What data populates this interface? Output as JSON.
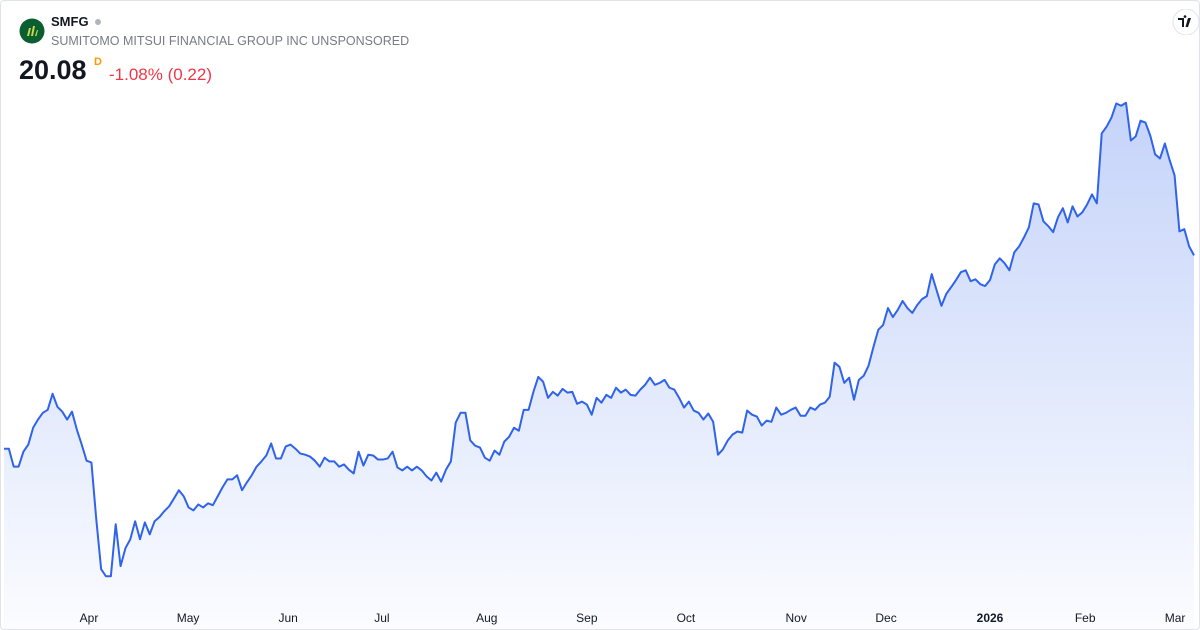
{
  "ticker": "SMFG",
  "name": "SUMITOMO MITSUI FINANCIAL GROUP INC UNSPONSORED",
  "price": 20.08,
  "interval": "D",
  "change": "-1.08% (0.22)",
  "chart_data": {
    "type": "area",
    "color": "#2f63eb",
    "values": [
      14.91,
      14.91,
      14.43,
      14.43,
      14.83,
      15.02,
      15.47,
      15.69,
      15.87,
      15.95,
      16.38,
      16.03,
      15.9,
      15.69,
      15.9,
      15.42,
      15.02,
      14.59,
      14.54,
      13.02,
      11.69,
      11.5,
      11.5,
      12.89,
      11.77,
      12.25,
      12.49,
      12.97,
      12.49,
      12.94,
      12.62,
      12.97,
      13.08,
      13.24,
      13.37,
      13.58,
      13.8,
      13.64,
      13.34,
      13.26,
      13.42,
      13.34,
      13.45,
      13.4,
      13.64,
      13.88,
      14.09,
      14.09,
      14.2,
      13.8,
      14.01,
      14.2,
      14.43,
      14.57,
      14.73,
      15.05,
      14.65,
      14.65,
      14.97,
      15.02,
      14.91,
      14.78,
      14.75,
      14.7,
      14.59,
      14.43,
      14.67,
      14.57,
      14.57,
      14.43,
      14.49,
      14.35,
      14.25,
      14.83,
      14.46,
      14.75,
      14.73,
      14.62,
      14.62,
      14.65,
      14.83,
      14.41,
      14.33,
      14.43,
      14.33,
      14.43,
      14.33,
      14.17,
      14.06,
      14.27,
      14.03,
      14.35,
      14.57,
      15.61,
      15.87,
      15.87,
      15.13,
      14.99,
      14.94,
      14.67,
      14.59,
      14.86,
      14.75,
      15.1,
      15.23,
      15.47,
      15.39,
      15.95,
      15.95,
      16.43,
      16.83,
      16.7,
      16.27,
      16.43,
      16.33,
      16.51,
      16.41,
      16.43,
      16.11,
      16.17,
      16.09,
      15.82,
      16.27,
      16.14,
      16.35,
      16.27,
      16.54,
      16.41,
      16.49,
      16.35,
      16.33,
      16.49,
      16.62,
      16.81,
      16.62,
      16.67,
      16.75,
      16.54,
      16.49,
      16.27,
      16.01,
      16.17,
      15.93,
      15.87,
      15.69,
      15.85,
      15.63,
      14.75,
      14.89,
      15.13,
      15.29,
      15.37,
      15.34,
      15.93,
      15.82,
      15.77,
      15.53,
      15.66,
      15.63,
      16.01,
      15.82,
      15.87,
      15.95,
      16.01,
      15.79,
      15.79,
      16.01,
      15.95,
      16.09,
      16.14,
      16.3,
      17.21,
      17.1,
      16.67,
      16.81,
      16.22,
      16.75,
      16.86,
      17.13,
      17.63,
      18.09,
      18.22,
      18.67,
      18.43,
      18.62,
      18.86,
      18.67,
      18.54,
      18.75,
      18.91,
      18.99,
      19.58,
      19.15,
      18.73,
      19.05,
      19.23,
      19.42,
      19.63,
      19.68,
      19.39,
      19.44,
      19.31,
      19.26,
      19.42,
      19.84,
      20.0,
      19.87,
      19.68,
      20.16,
      20.32,
      20.56,
      20.83,
      21.47,
      21.44,
      20.99,
      20.86,
      20.7,
      21.1,
      21.34,
      20.96,
      21.39,
      21.12,
      21.23,
      21.44,
      21.71,
      21.47,
      23.34,
      23.52,
      23.76,
      24.14,
      24.08,
      24.16,
      23.15,
      23.26,
      23.68,
      23.63,
      23.28,
      22.78,
      22.67,
      23.07,
      22.62,
      22.22,
      20.72,
      20.78,
      20.32,
      20.08
    ],
    "xlim": [
      0,
      245
    ],
    "ylim": [
      10.09,
      26.88
    ],
    "xticks": [
      {
        "value": 17.5,
        "label": "Apr"
      },
      {
        "value": 37.9,
        "label": "May"
      },
      {
        "value": 58.5,
        "label": "Jun"
      },
      {
        "value": 77.8,
        "label": "Jul"
      },
      {
        "value": 99.4,
        "label": "Aug"
      },
      {
        "value": 120.0,
        "label": "Sep"
      },
      {
        "value": 140.4,
        "label": "Oct"
      },
      {
        "value": 163.1,
        "label": "Nov"
      },
      {
        "value": 181.6,
        "label": "Dec"
      },
      {
        "value": 203.0,
        "label": "2026"
      },
      {
        "value": 222.6,
        "label": "Feb"
      },
      {
        "value": 241.1,
        "label": "Mar"
      }
    ]
  }
}
